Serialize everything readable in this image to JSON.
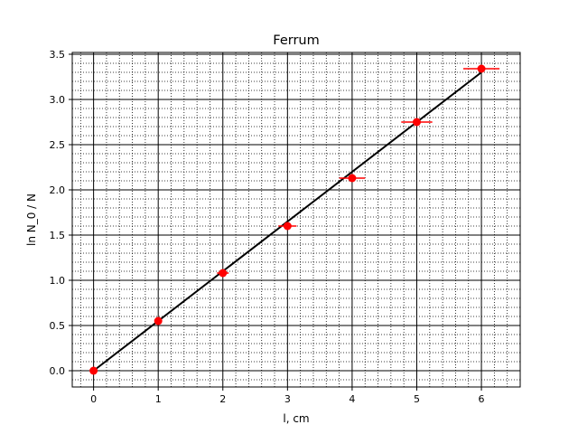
{
  "chart_data": {
    "type": "scatter",
    "title": "Ferrum",
    "xlabel": "l, cm",
    "ylabel": "ln N_0 / N",
    "xlim": [
      -0.33,
      6.6
    ],
    "ylim": [
      -0.18,
      3.52
    ],
    "x_ticks": [
      0,
      1,
      2,
      3,
      4,
      5,
      6
    ],
    "x_tick_labels": [
      "0",
      "1",
      "2",
      "3",
      "4",
      "5",
      "6"
    ],
    "y_ticks": [
      0.0,
      0.5,
      1.0,
      1.5,
      2.0,
      2.5,
      3.0,
      3.5
    ],
    "y_tick_labels": [
      "0.0",
      "0.5",
      "1.0",
      "1.5",
      "2.0",
      "2.5",
      "3.0",
      "3.5"
    ],
    "grid": "major and minor",
    "series": [
      {
        "kind": "points-with-xerr",
        "color": "#ff0000",
        "x": [
          0,
          1,
          2,
          3,
          4,
          5,
          6
        ],
        "y": [
          0.0,
          0.55,
          1.08,
          1.6,
          2.13,
          2.75,
          3.34
        ],
        "xerr": [
          0.02,
          0.05,
          0.09,
          0.14,
          0.2,
          0.24,
          0.28
        ]
      },
      {
        "kind": "fit-line",
        "color": "#000000",
        "x": [
          0,
          6
        ],
        "y": [
          0.0,
          3.3
        ]
      }
    ]
  }
}
